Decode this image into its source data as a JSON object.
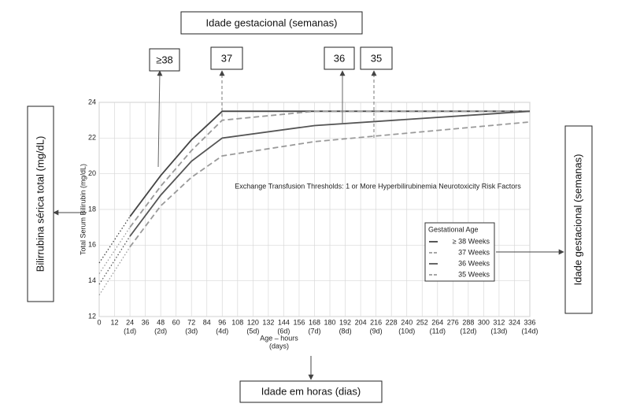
{
  "chart_data": {
    "type": "line",
    "title": "Exchange Transfusion Thresholds:  1 or More Hyperbilirubinemia Neurotoxicity Risk Factors",
    "x_label": "Age – hours",
    "x_label_sub": "(days)",
    "y_label": "Total Serum Bilirubin (mg/dL)",
    "x": [
      0,
      24,
      48,
      72,
      96,
      168,
      336
    ],
    "series": [
      {
        "name": "≥ 38 Weeks",
        "color": "#444444",
        "style": "solid",
        "values": [
          15.0,
          17.6,
          19.9,
          21.9,
          23.5,
          23.5,
          23.5
        ]
      },
      {
        "name": "37 Weeks",
        "color": "#999999",
        "style": "dashed",
        "values": [
          14.4,
          17.0,
          19.3,
          21.3,
          23.0,
          23.5,
          23.5
        ]
      },
      {
        "name": "36 Weeks",
        "color": "#555555",
        "style": "solid",
        "values": [
          13.8,
          16.5,
          18.8,
          20.7,
          22.0,
          22.7,
          23.5
        ]
      },
      {
        "name": "35 Weeks",
        "color": "#999999",
        "style": "dashed",
        "values": [
          13.2,
          15.9,
          18.2,
          19.8,
          21.0,
          21.8,
          22.9
        ]
      }
    ],
    "xlim": [
      0,
      336
    ],
    "xticks": [
      0,
      12,
      24,
      36,
      48,
      60,
      72,
      84,
      96,
      108,
      120,
      132,
      144,
      156,
      168,
      180,
      192,
      204,
      216,
      228,
      240,
      252,
      264,
      276,
      288,
      300,
      312,
      324,
      336
    ],
    "x_day_labels": [
      {
        "value": 24,
        "label": "(1d)"
      },
      {
        "value": 48,
        "label": "(2d)"
      },
      {
        "value": 72,
        "label": "(3d)"
      },
      {
        "value": 96,
        "label": "(4d)"
      },
      {
        "value": 120,
        "label": "(5d)"
      },
      {
        "value": 144,
        "label": "(6d)"
      },
      {
        "value": 168,
        "label": "(7d)"
      },
      {
        "value": 192,
        "label": "(8d)"
      },
      {
        "value": 216,
        "label": "(9d)"
      },
      {
        "value": 240,
        "label": "(10d)"
      },
      {
        "value": 264,
        "label": "(11d)"
      },
      {
        "value": 288,
        "label": "(12d)"
      },
      {
        "value": 312,
        "label": "(13d)"
      },
      {
        "value": 336,
        "label": "(14d)"
      }
    ],
    "ylim": [
      12,
      24
    ],
    "yticks": [
      12,
      14,
      16,
      18,
      20,
      22,
      24
    ],
    "grid": true,
    "legend_title": "Gestational Age",
    "legend": "right"
  },
  "annotations": {
    "top_label": "Idade gestacional (semanas)",
    "left_label": "Bilirrubina sérica total (mg/dL)",
    "right_label": "Idade gestacional (semanas)",
    "bottom_label": "Idade em horas (dias)",
    "series_boxes": [
      "≥38",
      "37",
      "36",
      "35"
    ]
  }
}
